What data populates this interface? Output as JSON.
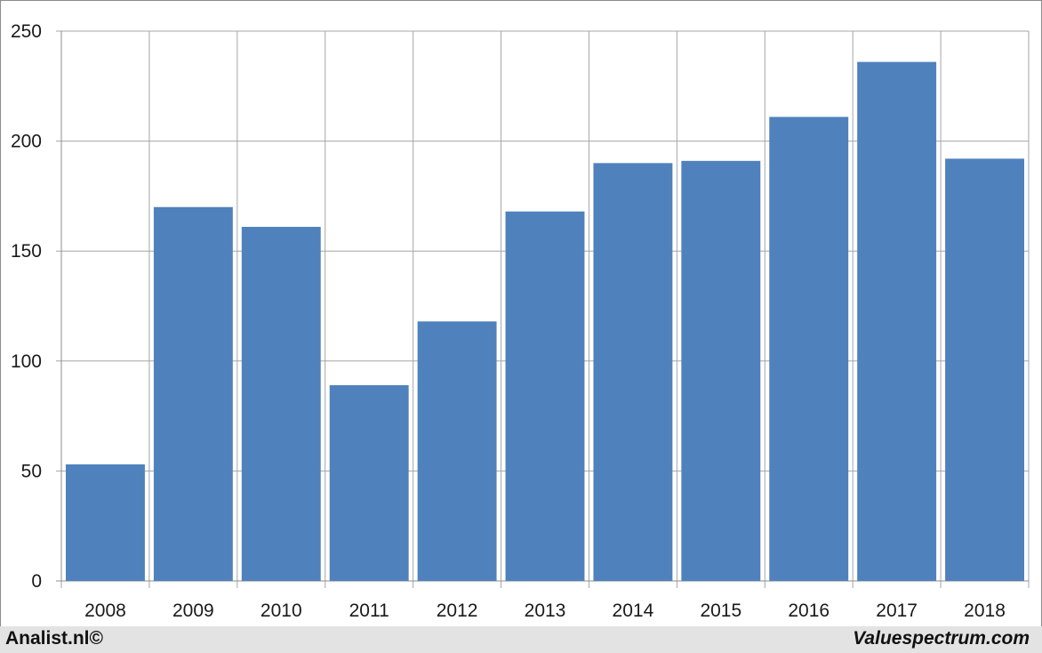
{
  "chart_data": {
    "type": "bar",
    "categories": [
      "2008",
      "2009",
      "2010",
      "2011",
      "2012",
      "2013",
      "2014",
      "2015",
      "2016",
      "2017",
      "2018"
    ],
    "values": [
      53,
      170,
      161,
      89,
      118,
      168,
      190,
      191,
      211,
      236,
      192
    ],
    "ylim": [
      0,
      250
    ],
    "yticks": [
      0,
      50,
      100,
      150,
      200,
      250
    ],
    "grid": true,
    "bar_color": "#4f81bd",
    "grid_color": "#a6a6a6"
  },
  "footer": {
    "left": "Analist.nl©",
    "right": "Valuespectrum.com"
  }
}
